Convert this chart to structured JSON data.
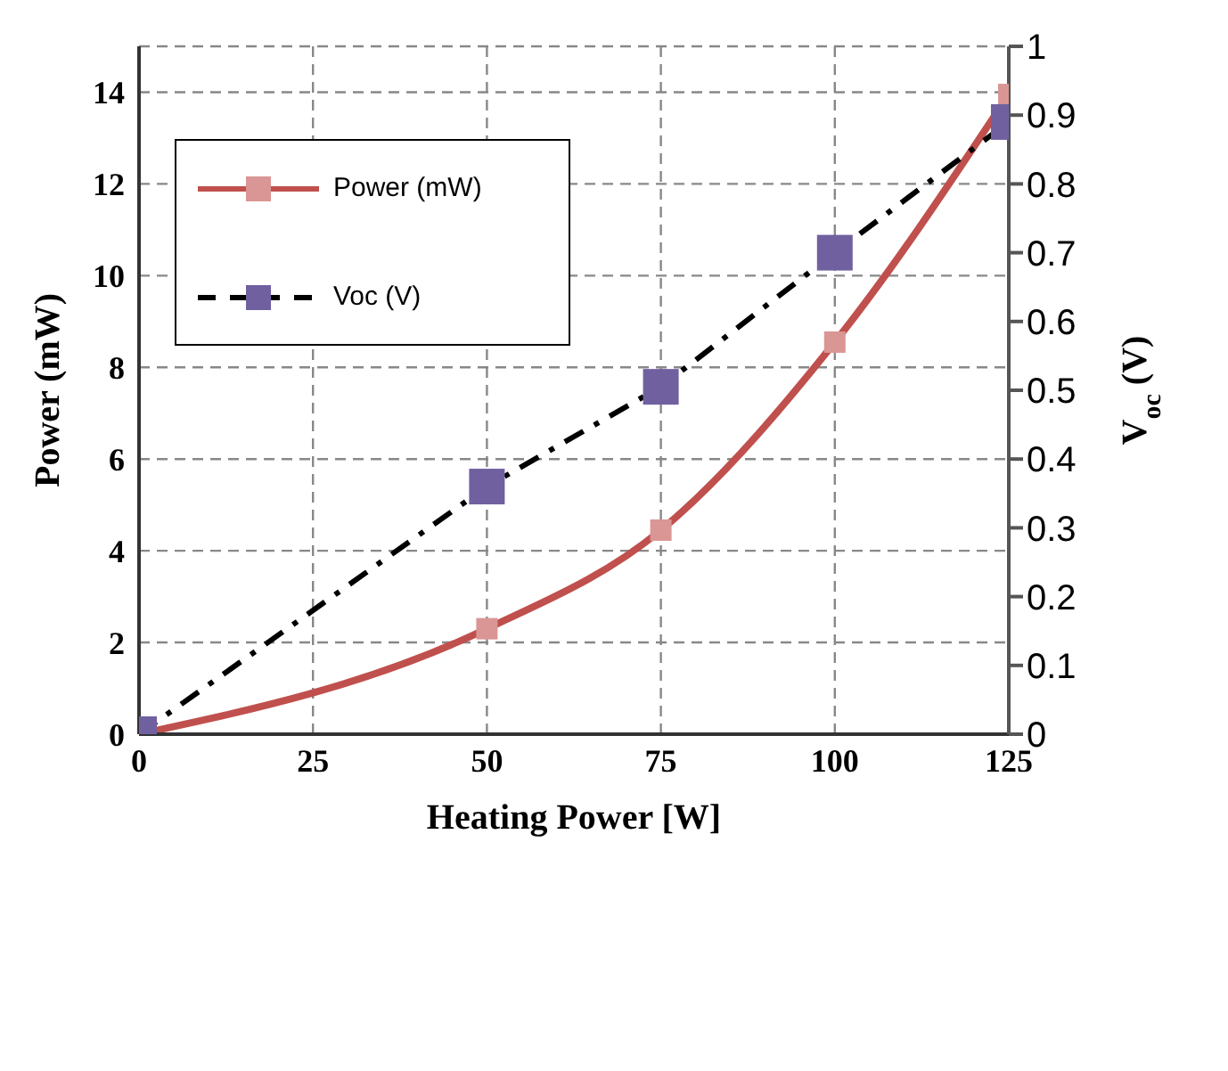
{
  "chart_data": {
    "type": "line",
    "xlabel": "Heating Power  [W]",
    "ylabel": "Power (mW)",
    "y2label": "V$_{oc}$ (V)",
    "x": [
      0,
      50,
      75,
      100,
      125
    ],
    "series": [
      {
        "name": "Power (mW)",
        "color": "#c0504d",
        "colors": [
          "#d99694",
          "#d99694",
          "#d99694",
          "#d99694",
          "#d99694"
        ],
        "line_style": "solid",
        "values": [
          0,
          2.3,
          4.45,
          8.55,
          13.95
        ]
      },
      {
        "name": "Voc (V)",
        "axis": "y2",
        "color": "#000000",
        "colors": [
          "#7060a0",
          "#7060a0",
          "#7060a0",
          "#7060a0",
          "#7060a0"
        ],
        "line_style": "dashed",
        "values": [
          0,
          0.36,
          0.505,
          0.7,
          0.89
        ]
      }
    ],
    "xlim": [
      0,
      125
    ],
    "xticks": [
      0,
      25,
      50,
      75,
      100,
      125
    ],
    "ylim": [
      0,
      15
    ],
    "yticks": [
      0,
      2,
      4,
      6,
      8,
      10,
      12,
      14
    ],
    "y2lim": [
      0,
      1
    ],
    "y2ticks": [
      0,
      0.1,
      0.2,
      0.3,
      0.4,
      0.5,
      0.6,
      0.7,
      0.8,
      0.9,
      1
    ],
    "grid": true,
    "legend": "top left",
    "marker": "square"
  }
}
